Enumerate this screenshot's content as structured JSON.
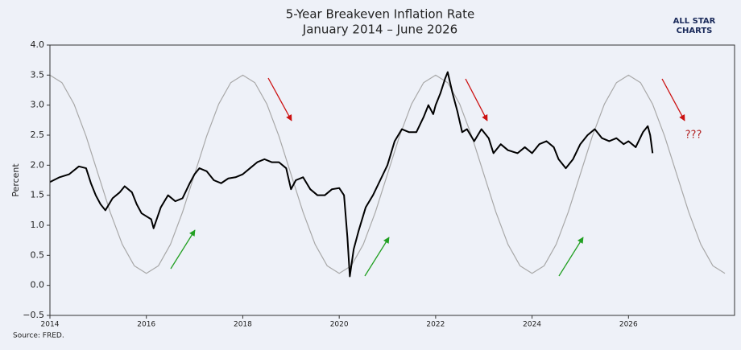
{
  "chart_data": {
    "type": "line",
    "title": "5-Year Breakeven Inflation Rate",
    "subtitle": "January 2014 – June 2026",
    "y_label": "Percent",
    "source": "Source: FRED.",
    "logo": [
      "ALL STAR",
      "CHARTS"
    ],
    "annotation": "???",
    "annotation_color": "#b22222",
    "xlim": [
      2014,
      2028.2
    ],
    "xticks": [
      2014,
      2016,
      2018,
      2020,
      2022,
      2024,
      2026
    ],
    "ylim": [
      -0.5,
      4.0
    ],
    "yticks": [
      {
        "value": -0.5,
        "label": "−0.5"
      },
      {
        "value": 0,
        "label": "0.0"
      },
      0.5,
      {
        "value": 1,
        "label": "1.0"
      },
      1.5,
      {
        "value": 2,
        "label": "2.0"
      },
      2.5,
      {
        "value": 3,
        "label": "3.0"
      },
      3.5,
      {
        "value": 4,
        "label": "4.0"
      }
    ],
    "series": [
      {
        "color": "#000000",
        "x": [
          2014.0,
          2014.2,
          2014.4,
          2014.6,
          2014.75,
          2014.85,
          2014.95,
          2015.05,
          2015.15,
          2015.3,
          2015.45,
          2015.55,
          2015.7,
          2015.8,
          2015.9,
          2016.0,
          2016.1,
          2016.15,
          2016.3,
          2016.45,
          2016.6,
          2016.75,
          2016.9,
          2017.0,
          2017.1,
          2017.25,
          2017.4,
          2017.55,
          2017.7,
          2017.85,
          2018.0,
          2018.15,
          2018.3,
          2018.45,
          2018.6,
          2018.75,
          2018.9,
          2019.0,
          2019.1,
          2019.25,
          2019.4,
          2019.55,
          2019.7,
          2019.85,
          2020.0,
          2020.1,
          2020.17,
          2020.22,
          2020.3,
          2020.4,
          2020.55,
          2020.7,
          2020.85,
          2021.0,
          2021.15,
          2021.3,
          2021.45,
          2021.6,
          2021.75,
          2021.85,
          2021.95,
          2022.0,
          2022.1,
          2022.2,
          2022.25,
          2022.35,
          2022.45,
          2022.55,
          2022.65,
          2022.8,
          2022.95,
          2023.1,
          2023.2,
          2023.35,
          2023.5,
          2023.7,
          2023.85,
          2024.0,
          2024.15,
          2024.3,
          2024.45,
          2024.55,
          2024.7,
          2024.85,
          2025.0,
          2025.15,
          2025.3,
          2025.45,
          2025.6,
          2025.75,
          2025.9,
          2026.0,
          2026.15,
          2026.3,
          2026.4,
          2026.45,
          2026.5
        ],
        "values": [
          1.72,
          1.8,
          1.85,
          1.98,
          1.95,
          1.7,
          1.5,
          1.35,
          1.25,
          1.45,
          1.55,
          1.65,
          1.55,
          1.35,
          1.2,
          1.15,
          1.1,
          0.95,
          1.3,
          1.5,
          1.4,
          1.45,
          1.7,
          1.85,
          1.95,
          1.9,
          1.75,
          1.7,
          1.78,
          1.8,
          1.85,
          1.95,
          2.05,
          2.1,
          2.05,
          2.05,
          1.95,
          1.6,
          1.75,
          1.8,
          1.6,
          1.5,
          1.5,
          1.6,
          1.62,
          1.5,
          0.8,
          0.15,
          0.6,
          0.9,
          1.3,
          1.5,
          1.75,
          2.0,
          2.4,
          2.6,
          2.55,
          2.55,
          2.8,
          3.0,
          2.85,
          3.0,
          3.2,
          3.45,
          3.55,
          3.2,
          2.9,
          2.55,
          2.6,
          2.4,
          2.6,
          2.45,
          2.2,
          2.35,
          2.25,
          2.2,
          2.3,
          2.2,
          2.35,
          2.4,
          2.3,
          2.1,
          1.95,
          2.1,
          2.35,
          2.5,
          2.6,
          2.45,
          2.4,
          2.45,
          2.35,
          2.4,
          2.3,
          2.55,
          2.65,
          2.5,
          2.2
        ]
      },
      {
        "color": "#a8a8a8",
        "x": [
          2014,
          2014.25,
          2014.5,
          2014.75,
          2015,
          2015.25,
          2015.5,
          2015.75,
          2016,
          2016.25,
          2016.5,
          2016.75,
          2017,
          2017.25,
          2017.5,
          2017.75,
          2018,
          2018.25,
          2018.5,
          2018.75,
          2019,
          2019.25,
          2019.5,
          2019.75,
          2020,
          2020.25,
          2020.5,
          2020.75,
          2021,
          2021.25,
          2021.5,
          2021.75,
          2022,
          2022.25,
          2022.5,
          2022.75,
          2023,
          2023.25,
          2023.5,
          2023.75,
          2024,
          2024.25,
          2024.5,
          2024.75,
          2025,
          2025.25,
          2025.5,
          2025.75,
          2026,
          2026.25,
          2026.5,
          2026.75,
          2027,
          2027.25,
          2027.5,
          2027.75,
          2028
        ],
        "values": [
          3.5,
          3.374,
          3.017,
          2.482,
          1.85,
          1.218,
          0.683,
          0.326,
          0.2,
          0.326,
          0.683,
          1.218,
          1.85,
          2.482,
          3.017,
          3.374,
          3.5,
          3.374,
          3.017,
          2.482,
          1.85,
          1.218,
          0.683,
          0.326,
          0.2,
          0.326,
          0.683,
          1.218,
          1.85,
          2.482,
          3.017,
          3.374,
          3.5,
          3.374,
          3.017,
          2.482,
          1.85,
          1.218,
          0.683,
          0.326,
          0.2,
          0.326,
          0.683,
          1.218,
          1.85,
          2.482,
          3.017,
          3.374,
          3.5,
          3.374,
          3.017,
          2.482,
          1.85,
          1.218,
          0.683,
          0.326,
          0.2
        ]
      }
    ]
  }
}
